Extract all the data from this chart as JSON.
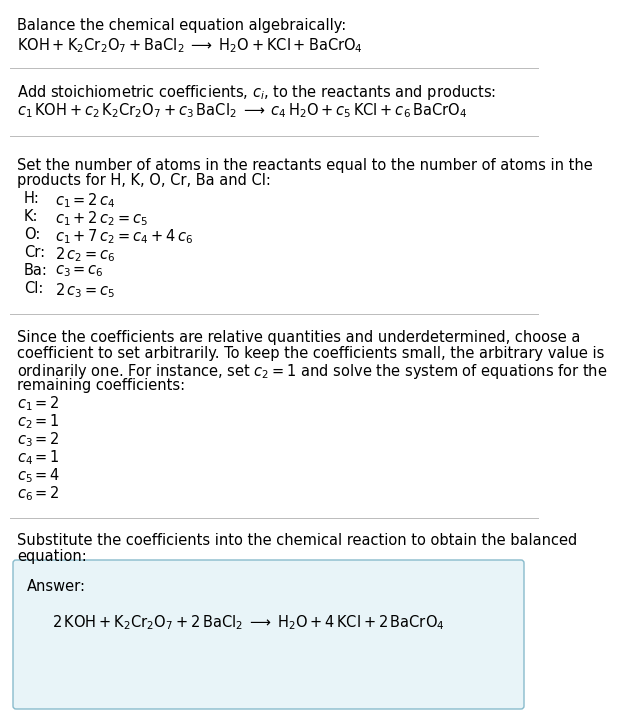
{
  "bg_color": "#ffffff",
  "answer_box_color": "#e8f4f8",
  "answer_box_edge": "#88bbcc",
  "fs": 10.5,
  "fs_math": 10.5,
  "line1": "Balance the chemical equation algebraically:",
  "line2_math": "$\\mathrm{KOH + K_2Cr_2O_7 + BaCl_2 \\;\\longrightarrow\\; H_2O + KCl + BaCrO_4}$",
  "line3": "Add stoichiometric coefficients, $c_i$, to the reactants and products:",
  "line4_math": "$c_1\\,\\mathrm{KOH} + c_2\\,\\mathrm{K_2Cr_2O_7} + c_3\\,\\mathrm{BaCl_2} \\;\\longrightarrow\\; c_4\\,\\mathrm{H_2O} + c_5\\,\\mathrm{KCl} + c_6\\,\\mathrm{BaCrO_4}$",
  "line5a": "Set the number of atoms in the reactants equal to the number of atoms in the",
  "line5b": "products for H, K, O, Cr, Ba and Cl:",
  "eq_labels": [
    "H:",
    "K:",
    "O:",
    "Cr:",
    "Ba:",
    "Cl:"
  ],
  "eq_math": [
    "$c_1 = 2\\,c_4$",
    "$c_1 + 2\\,c_2 = c_5$",
    "$c_1 + 7\\,c_2 = c_4 + 4\\,c_6$",
    "$2\\,c_2 = c_6$",
    "$c_3 = c_6$",
    "$2\\,c_3 = c_5$"
  ],
  "para_lines": [
    "Since the coefficients are relative quantities and underdetermined, choose a",
    "coefficient to set arbitrarily. To keep the coefficients small, the arbitrary value is",
    "ordinarily one. For instance, set $c_2 = 1$ and solve the system of equations for the",
    "remaining coefficients:"
  ],
  "coeff_math": [
    "$c_1 = 2$",
    "$c_2 = 1$",
    "$c_3 = 2$",
    "$c_4 = 1$",
    "$c_5 = 4$",
    "$c_6 = 2$"
  ],
  "sub_line1": "Substitute the coefficients into the chemical reaction to obtain the balanced",
  "sub_line2": "equation:",
  "answer_label": "Answer:",
  "answer_math": "$2\\,\\mathrm{KOH} + \\mathrm{K_2Cr_2O_7} + 2\\,\\mathrm{BaCl_2} \\;\\longrightarrow\\; \\mathrm{H_2O} + 4\\,\\mathrm{KCl} + 2\\,\\mathrm{BaCrO_4}$"
}
